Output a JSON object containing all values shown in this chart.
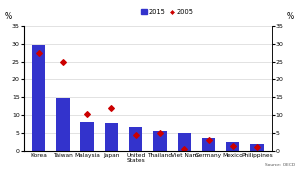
{
  "categories": [
    "Korea",
    "Taiwan",
    "Malaysia",
    "Japan",
    "United\nStates",
    "Thailand",
    "Viet Nam",
    "Germany",
    "Mexico",
    "Philippines"
  ],
  "bars_2015": [
    29.5,
    14.7,
    8.2,
    7.9,
    6.8,
    5.7,
    5.0,
    3.7,
    2.5,
    2.0
  ],
  "dots_2005": [
    27.5,
    25.0,
    10.3,
    12.0,
    4.5,
    5.0,
    0.7,
    3.0,
    1.5,
    1.3
  ],
  "bar_color": "#3333cc",
  "dot_color": "#cc0000",
  "ylim": [
    0,
    35
  ],
  "yticks": [
    0,
    5,
    10,
    15,
    20,
    25,
    30,
    35
  ],
  "ylabel_left": "%",
  "ylabel_right": "%",
  "legend_bar_label": "2015",
  "legend_dot_label": "2005",
  "source_text": "Source: OECD",
  "background_color": "#ffffff"
}
